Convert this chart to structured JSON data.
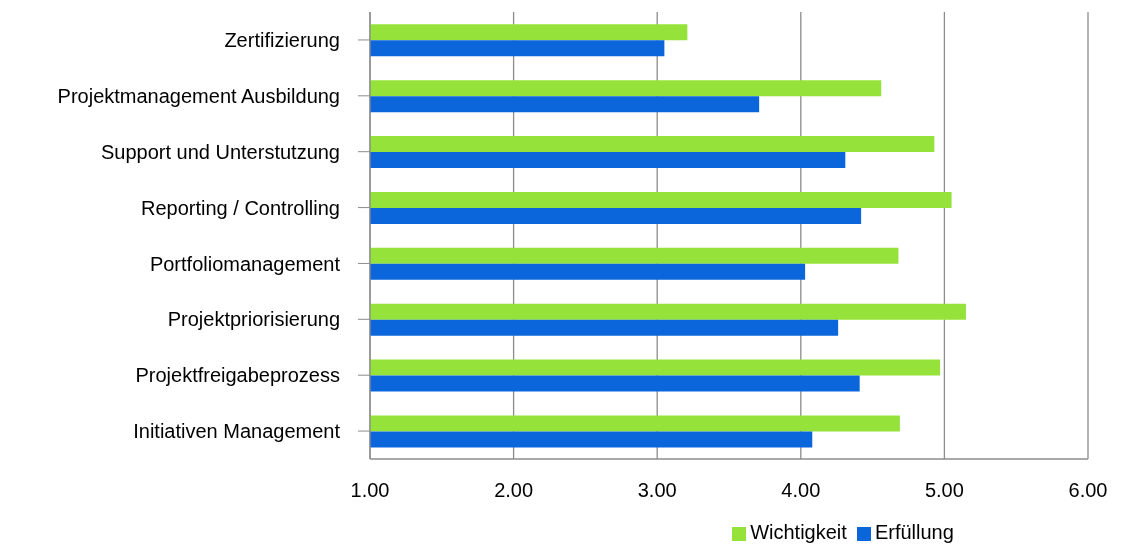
{
  "chart_data": {
    "type": "bar",
    "orientation": "horizontal",
    "categories": [
      "Zertifizierung",
      "Projektmanagement  Ausbildung",
      "Support und Unterstutzung",
      "Reporting / Controlling",
      "Portfoliomanagement",
      "Projektpriorisierung",
      "Projektfreigabeprozess",
      "Initiativen Management"
    ],
    "series": [
      {
        "name": "Wichtigkeit",
        "color": "#95e33a",
        "values": [
          3.21,
          4.56,
          4.93,
          5.05,
          4.68,
          5.15,
          4.97,
          4.69
        ]
      },
      {
        "name": "Erfüllung",
        "color": "#0b66dc",
        "values": [
          3.05,
          3.71,
          4.31,
          4.42,
          4.03,
          4.26,
          4.41,
          4.08
        ]
      }
    ],
    "xlim": [
      1,
      6
    ],
    "xticks": [
      {
        "value": 1,
        "label": "1.00"
      },
      {
        "value": 2,
        "label": "2.00"
      },
      {
        "value": 3,
        "label": "3.00"
      },
      {
        "value": 4,
        "label": "4.00"
      },
      {
        "value": 5,
        "label": "5.00"
      },
      {
        "value": 6,
        "label": "6.00"
      }
    ],
    "grid": "x",
    "legend": "bottom"
  }
}
